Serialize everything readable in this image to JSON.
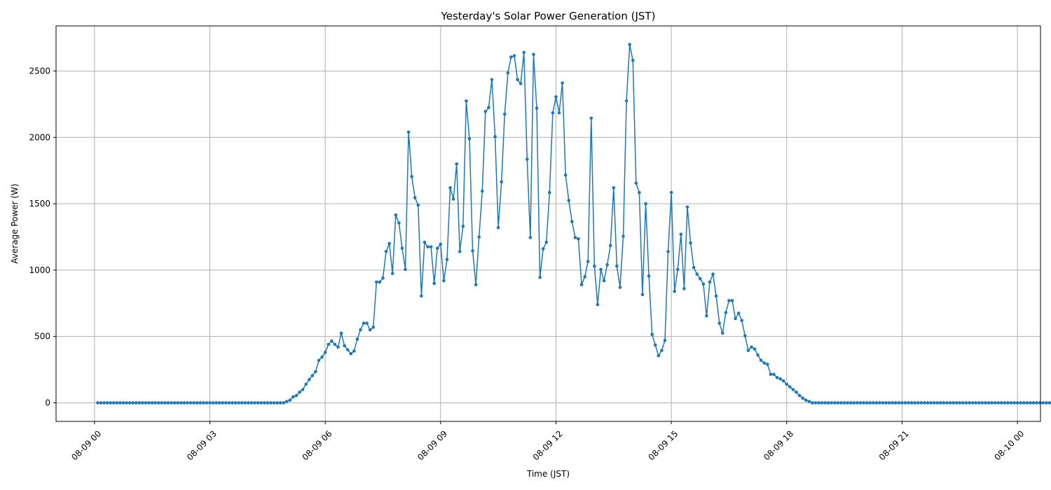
{
  "chart_data": {
    "type": "line",
    "title": "Yesterday's Solar Power Generation (JST)",
    "xlabel": "Time (JST)",
    "ylabel": "Average Power (W)",
    "x_tick_labels": [
      "08-09 00",
      "08-09 03",
      "08-09 06",
      "08-09 09",
      "08-09 12",
      "08-09 15",
      "08-09 18",
      "08-09 21",
      "08-10 00"
    ],
    "y_tick_labels": [
      "0",
      "500",
      "1000",
      "1500",
      "2000",
      "2500"
    ],
    "y_ticks": [
      0,
      500,
      1000,
      1500,
      2000,
      2500
    ],
    "ylim": [
      -140,
      2840
    ],
    "xlim_hours": [
      -1.0,
      24.6
    ],
    "grid": true,
    "color": "#1f77b4",
    "marker": "circle",
    "series": [
      {
        "x_start": "08-09 00:05",
        "x_step_minutes": 5,
        "values": [
          0,
          0,
          0,
          0,
          0,
          0,
          0,
          0,
          0,
          0,
          0,
          0,
          0,
          0,
          0,
          0,
          0,
          0,
          0,
          0,
          0,
          0,
          0,
          0,
          0,
          0,
          0,
          0,
          0,
          0,
          0,
          0,
          0,
          0,
          0,
          0,
          0,
          0,
          0,
          0,
          0,
          0,
          0,
          0,
          0,
          0,
          0,
          0,
          0,
          0,
          0,
          0,
          0,
          0,
          0,
          0,
          0,
          0,
          0,
          10,
          20,
          45,
          55,
          80,
          100,
          140,
          175,
          205,
          235,
          320,
          345,
          380,
          440,
          465,
          440,
          420,
          525,
          430,
          400,
          370,
          390,
          480,
          550,
          600,
          600,
          550,
          570,
          910,
          910,
          940,
          1140,
          1200,
          975,
          1415,
          1355,
          1165,
          1005,
          2040,
          1705,
          1545,
          1490,
          805,
          1210,
          1175,
          1175,
          900,
          1165,
          1195,
          920,
          1080,
          1620,
          1535,
          1800,
          1140,
          1330,
          2275,
          1990,
          1145,
          890,
          1250,
          1595,
          2195,
          2225,
          2435,
          2005,
          1320,
          1665,
          2175,
          2485,
          2605,
          2615,
          2435,
          2405,
          2640,
          1835,
          1245,
          2625,
          2220,
          945,
          1160,
          1210,
          1585,
          2185,
          2305,
          2185,
          2410,
          1715,
          1525,
          1365,
          1245,
          1235,
          890,
          950,
          1065,
          2145,
          1030,
          740,
          1005,
          920,
          1040,
          1185,
          1620,
          1030,
          870,
          1255,
          2275,
          2700,
          2580,
          1655,
          1585,
          815,
          1500,
          955,
          515,
          435,
          355,
          395,
          470,
          1140,
          1585,
          840,
          1005,
          1270,
          860,
          1475,
          1205,
          1020,
          970,
          935,
          895,
          655,
          910,
          970,
          805,
          600,
          525,
          680,
          770,
          770,
          635,
          675,
          620,
          505,
          395,
          420,
          405,
          360,
          320,
          300,
          290,
          215,
          215,
          190,
          180,
          165,
          140,
          120,
          100,
          80,
          55,
          35,
          20,
          10,
          0,
          0,
          0,
          0,
          0,
          0,
          0,
          0,
          0,
          0,
          0,
          0,
          0,
          0,
          0,
          0,
          0,
          0,
          0,
          0,
          0,
          0,
          0,
          0,
          0,
          0,
          0,
          0,
          0,
          0,
          0,
          0,
          0,
          0,
          0,
          0,
          0,
          0,
          0,
          0,
          0,
          0,
          0,
          0,
          0,
          0,
          0,
          0,
          0,
          0,
          0,
          0,
          0,
          0,
          0,
          0,
          0,
          0,
          0,
          0,
          0,
          0,
          0,
          0,
          0,
          0,
          0,
          0,
          0,
          0,
          0,
          0,
          0,
          0,
          0,
          0
        ]
      }
    ]
  }
}
